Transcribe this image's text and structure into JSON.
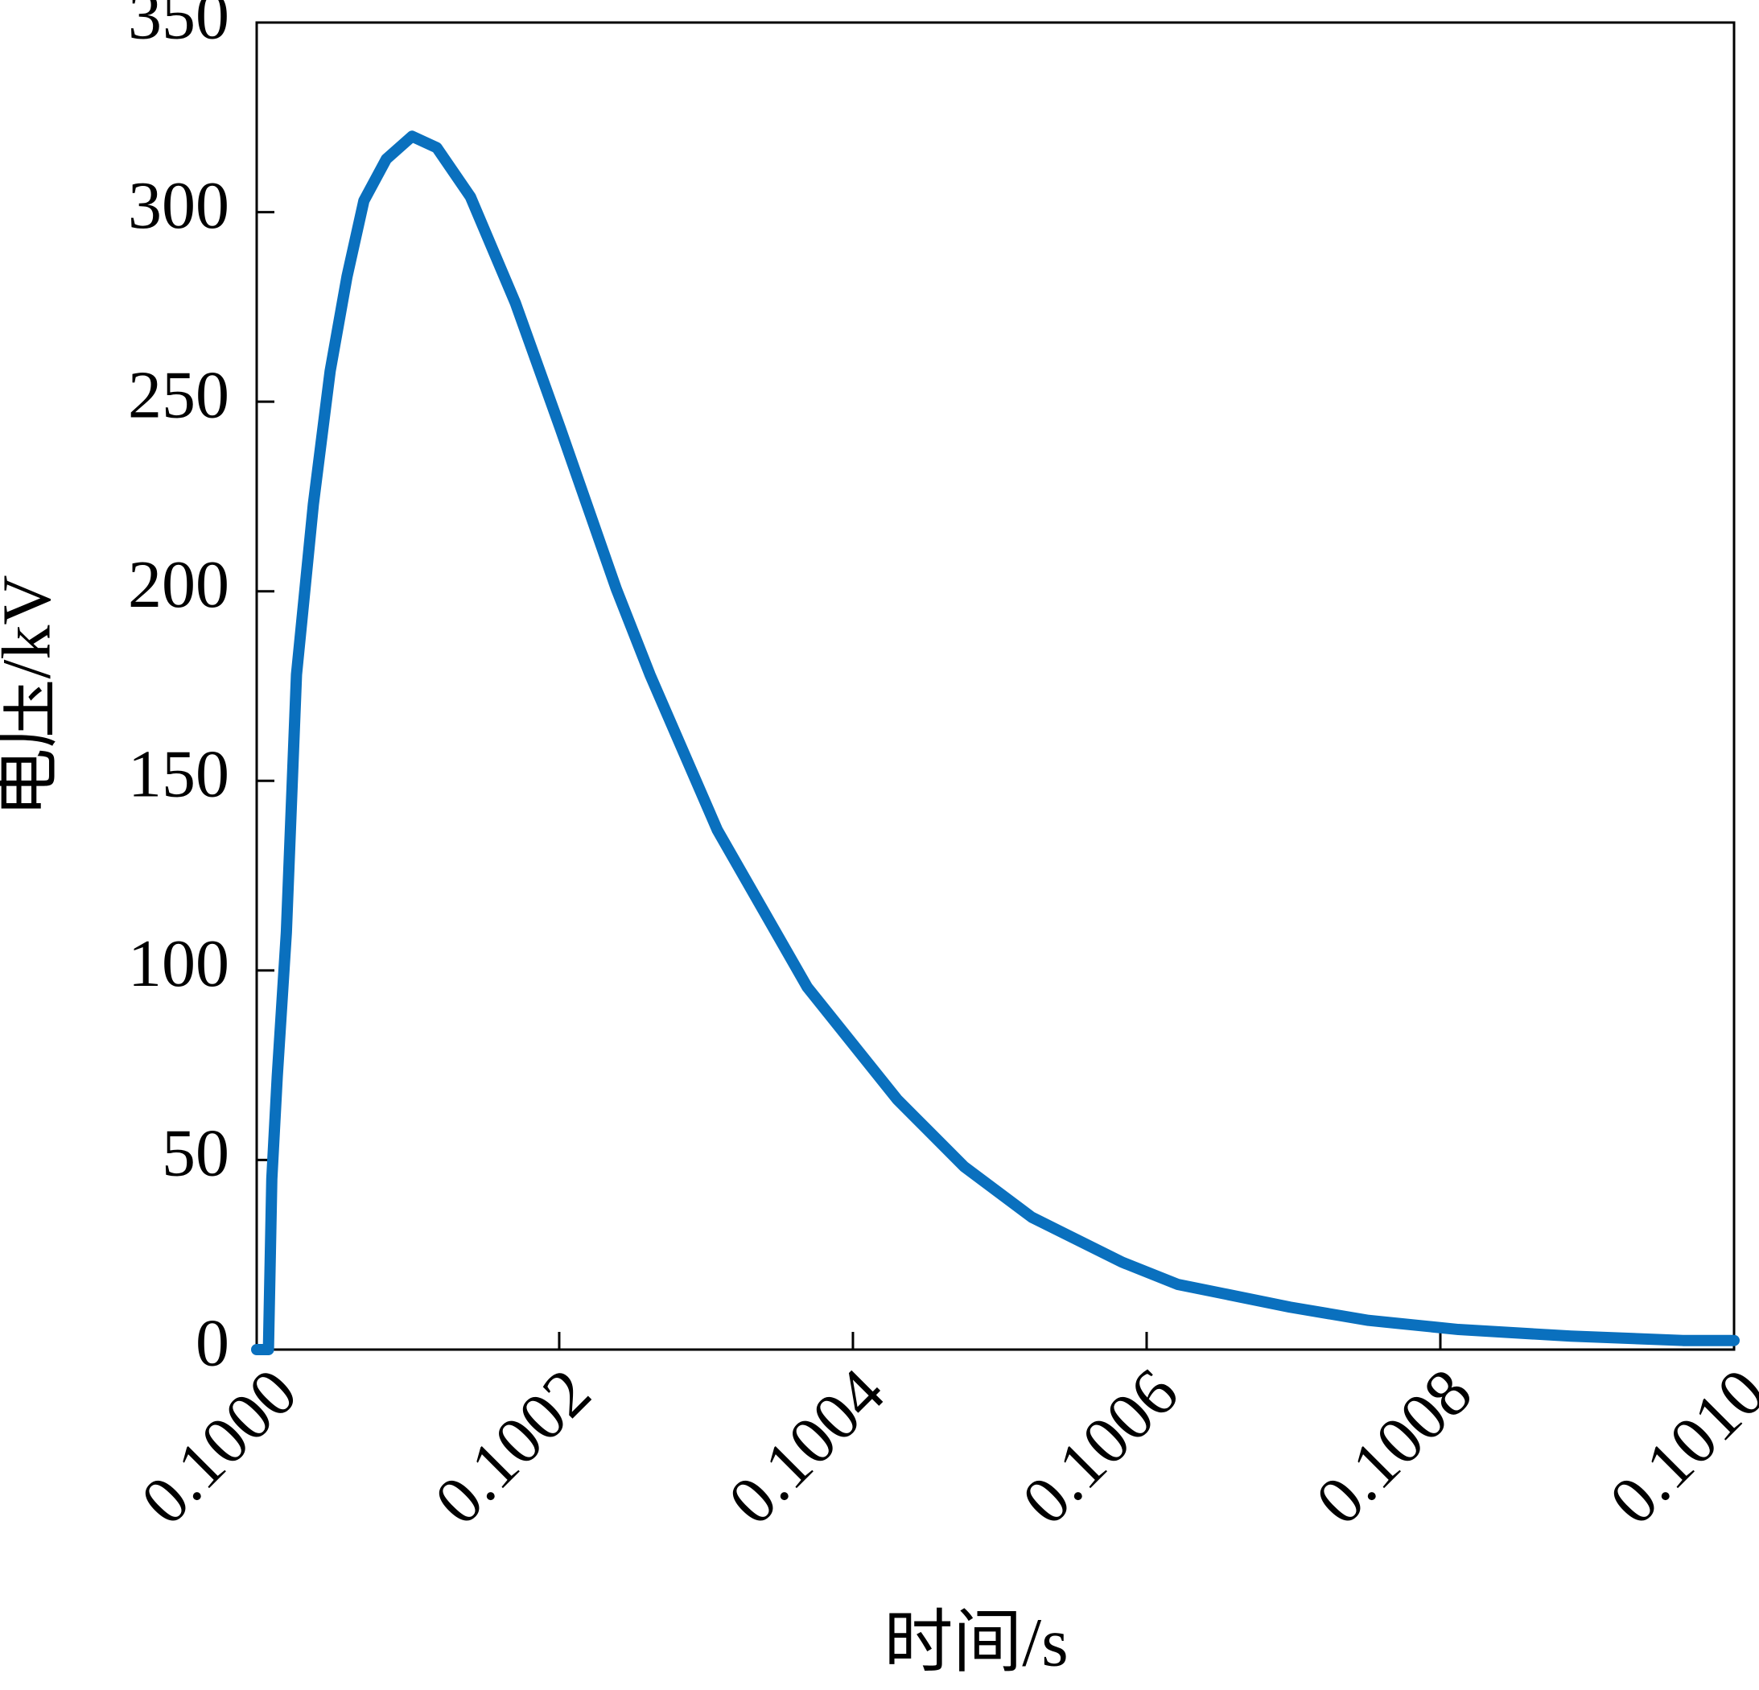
{
  "chart_data": {
    "type": "line",
    "xlabel": "时间/s",
    "ylabel": "电压/kV",
    "x": [
      0.099994,
      0.100002,
      0.1000043,
      0.100008,
      0.1000142,
      0.1000211,
      0.1000326,
      0.100044,
      0.1000555,
      0.100067,
      0.1000823,
      0.1000998,
      0.1001166,
      0.1001396,
      0.1001702,
      0.1002007,
      0.1002389,
      0.1002618,
      0.1003077,
      0.1003689,
      0.1004301,
      0.1004759,
      0.1005218,
      0.100583,
      0.1006212,
      0.1006976,
      0.1007511,
      0.1008123,
      0.1008888,
      0.1009652,
      0.101
    ],
    "values": [
      0,
      0,
      45,
      72,
      110,
      178,
      223,
      258,
      283,
      303,
      314,
      320,
      317,
      304,
      276,
      243,
      200.6,
      178,
      137,
      95.6,
      66,
      48.2,
      34.9,
      23.1,
      17.2,
      11.2,
      7.7,
      5.3,
      3.55,
      2.4,
      2.4
    ],
    "color": "#0a70be",
    "xlim": [
      0.099994,
      0.101
    ],
    "xticks": [
      {
        "value": 0.1,
        "label": "0.1000"
      },
      {
        "value": 0.1002,
        "label": "0.1002"
      },
      {
        "value": 0.1004,
        "label": "0.1004"
      },
      {
        "value": 0.1006,
        "label": "0.1006"
      },
      {
        "value": 0.1008,
        "label": "0.1008"
      },
      {
        "value": 0.101,
        "label": "0.1010"
      }
    ],
    "ylim": [
      0,
      350
    ],
    "yticks": [
      0,
      50,
      100,
      150,
      200,
      250,
      300,
      350
    ]
  }
}
